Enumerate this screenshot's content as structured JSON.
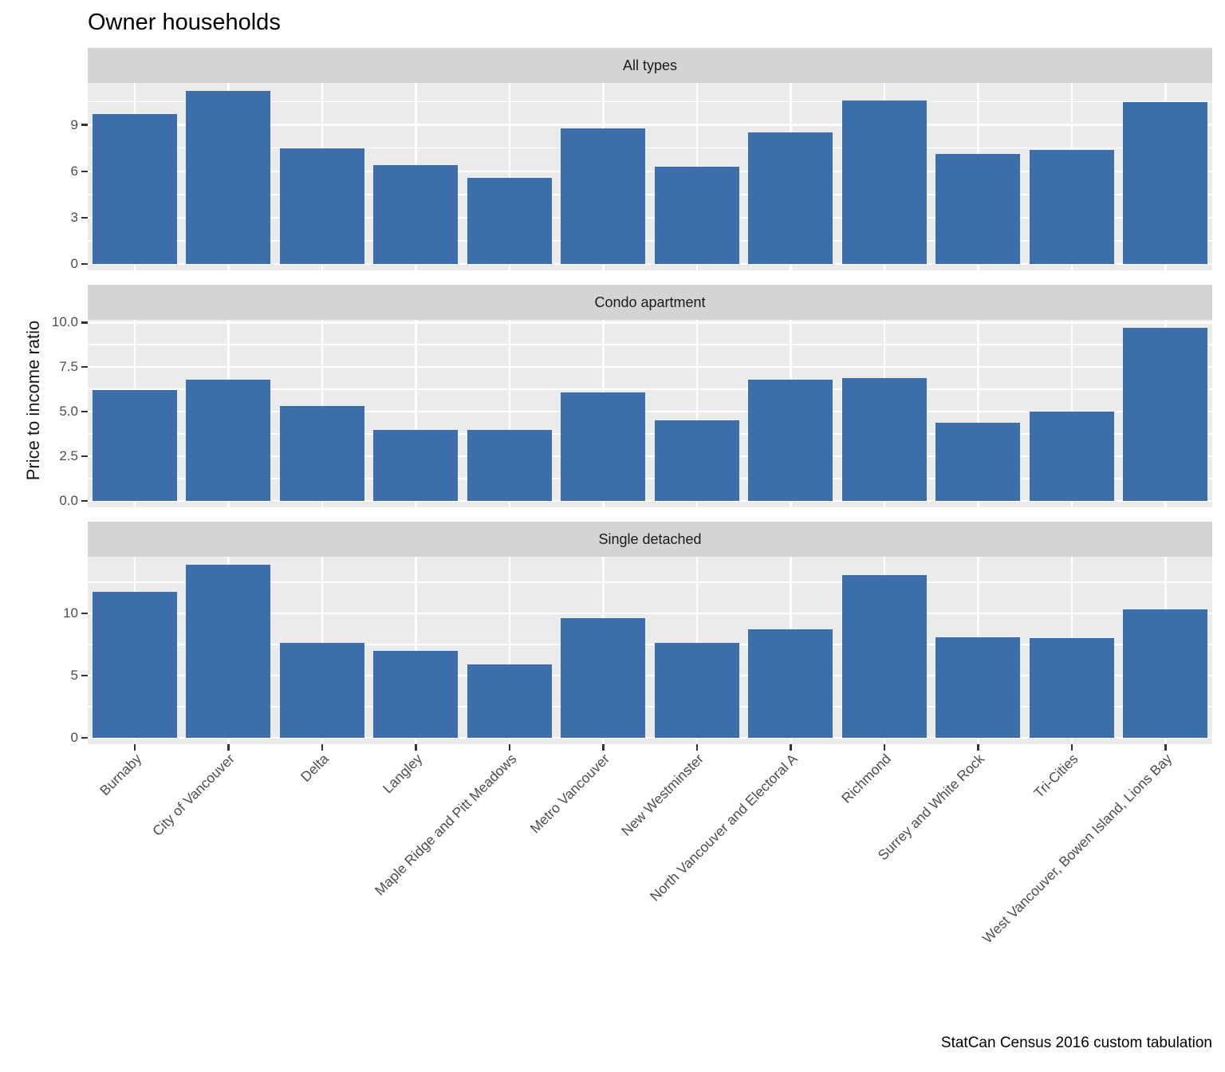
{
  "chart_data": {
    "type": "bar",
    "title": "Owner households",
    "ylabel": "Price to income ratio",
    "caption": "StatCan Census 2016 custom tabulation",
    "legend": "none",
    "grid": "on",
    "categories": [
      "Burnaby",
      "City of Vancouver",
      "Delta",
      "Langley",
      "Maple Ridge and Pitt Meadows",
      "Metro Vancouver",
      "New Westminster",
      "North Vancouver and Electoral A",
      "Richmond",
      "Surrey and White Rock",
      "Tri-Cities",
      "West Vancouver, Bowen Island, Lions Bay"
    ],
    "facets": [
      {
        "label": "All types",
        "ymax": 11.2,
        "yticks": [
          {
            "label": "0",
            "value": 0
          },
          {
            "label": "3",
            "value": 3
          },
          {
            "label": "6",
            "value": 6
          },
          {
            "label": "9",
            "value": 9
          }
        ],
        "minor_ticks": [
          1.5,
          4.5,
          7.5,
          10.5
        ],
        "values": [
          9.7,
          11.2,
          7.5,
          6.4,
          5.6,
          8.8,
          6.3,
          8.5,
          10.6,
          7.1,
          7.4,
          10.5
        ]
      },
      {
        "label": "Condo apartment",
        "ymax": 9.7,
        "yticks": [
          {
            "label": "0.0",
            "value": 0
          },
          {
            "label": "2.5",
            "value": 2.5
          },
          {
            "label": "5.0",
            "value": 5
          },
          {
            "label": "7.5",
            "value": 7.5
          },
          {
            "label": "10.0",
            "value": 10
          }
        ],
        "minor_ticks": [
          1.25,
          3.75,
          6.25,
          8.75
        ],
        "values": [
          6.2,
          6.8,
          5.3,
          4.0,
          4.0,
          6.1,
          4.5,
          6.8,
          6.9,
          4.4,
          5.0,
          9.7
        ]
      },
      {
        "label": "Single detached",
        "ymax": 13.9,
        "yticks": [
          {
            "label": "0",
            "value": 0
          },
          {
            "label": "5",
            "value": 5
          },
          {
            "label": "10",
            "value": 10
          }
        ],
        "minor_ticks": [
          2.5,
          7.5,
          12.5
        ],
        "values": [
          11.7,
          13.9,
          7.6,
          7.0,
          5.9,
          9.6,
          7.6,
          8.7,
          13.1,
          8.1,
          8.0,
          10.3
        ]
      }
    ],
    "colors": {
      "bar": "#3c6fa9",
      "panel_bg": "#ebebeb",
      "strip_bg": "#d4d4d4",
      "gridline": "#ffffff",
      "axis_text": "#4d4d4d",
      "tick_mark": "#333333",
      "title_text": "#000000"
    }
  }
}
